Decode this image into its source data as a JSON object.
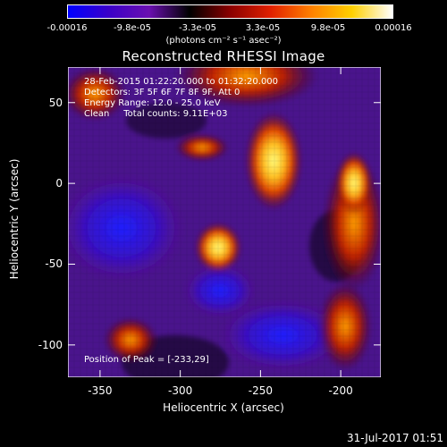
{
  "colorbar": {
    "ticks": [
      "-0.00016",
      "-9.8e-05",
      "-3.3e-05",
      "3.3e-05",
      "9.8e-05",
      "0.00016"
    ],
    "units": "(photons cm⁻² s⁻¹ asec⁻²)",
    "colors": [
      "#0000ff",
      "#3a00c8",
      "#6a10b0",
      "#000000",
      "#8a0000",
      "#e02000",
      "#ff8000",
      "#ffd000",
      "#ffffff"
    ]
  },
  "plot": {
    "title": "Reconstructed RHESSI Image",
    "xlabel": "Heliocentric X (arcsec)",
    "ylabel": "Heliocentric Y (arcsec)",
    "xlim": [
      -370,
      -175
    ],
    "ylim": [
      -120,
      72
    ],
    "x_ticks": [
      "-350",
      "-300",
      "-250",
      "-200"
    ],
    "y_ticks": [
      "50",
      "0",
      "-50",
      "-100"
    ],
    "info_lines": [
      "28-Feb-2015 01:22:20.000 to 01:32:20.000",
      "Detectors: 3F 5F 6F 7F 8F 9F, Att 0",
      "Energy Range: 12.0 - 25.0 keV",
      "Clean     Total counts: 9.11E+03"
    ],
    "peak_text": "Position of Peak = [-233,29]"
  },
  "footer": {
    "date": "31-Jul-2017 01:51"
  }
}
